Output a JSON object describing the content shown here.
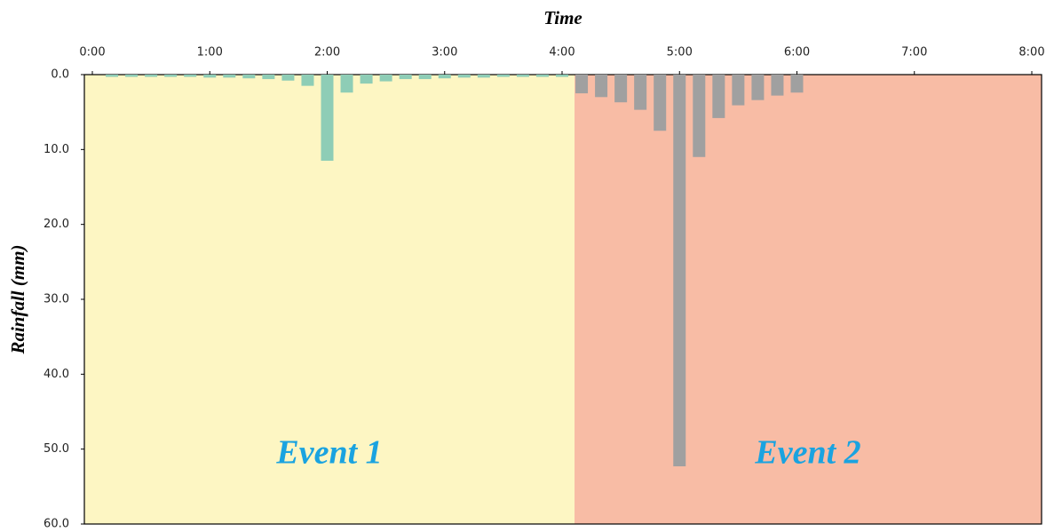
{
  "chart_data": {
    "type": "bar",
    "title": "Time",
    "y_label": "Rainfall (mm)",
    "series": [
      {
        "name": "Event 1",
        "color": "#8ecdb6",
        "region_color": "#fdf6c3",
        "x": [
          10,
          20,
          30,
          40,
          50,
          60,
          70,
          80,
          90,
          100,
          110,
          120,
          130,
          140,
          150,
          160,
          170,
          180,
          190,
          200,
          210,
          220,
          230,
          240
        ],
        "values": [
          0.3,
          0.3,
          0.3,
          0.3,
          0.3,
          0.4,
          0.4,
          0.5,
          0.6,
          0.8,
          1.5,
          11.5,
          2.4,
          1.2,
          0.9,
          0.6,
          0.6,
          0.5,
          0.4,
          0.4,
          0.3,
          0.3,
          0.3,
          0.3
        ]
      },
      {
        "name": "Event 2",
        "color": "#a0a0a0",
        "region_color": "#f8bca5",
        "x": [
          250,
          260,
          270,
          280,
          290,
          300,
          310,
          320,
          330,
          340,
          350,
          360
        ],
        "values": [
          2.5,
          3.0,
          3.7,
          4.7,
          7.5,
          52.3,
          11.0,
          5.8,
          4.1,
          3.4,
          2.8,
          2.4
        ]
      }
    ],
    "xlim": [
      0,
      480
    ],
    "xticks": [
      {
        "value": 0,
        "label": "0:00"
      },
      {
        "value": 60,
        "label": "1:00"
      },
      {
        "value": 120,
        "label": "2:00"
      },
      {
        "value": 180,
        "label": "3:00"
      },
      {
        "value": 240,
        "label": "4:00"
      },
      {
        "value": 300,
        "label": "5:00"
      },
      {
        "value": 360,
        "label": "6:00"
      },
      {
        "value": 420,
        "label": "7:00"
      },
      {
        "value": 480,
        "label": "8:00"
      }
    ],
    "ylim": [
      0,
      60
    ],
    "y_inverted": true,
    "yticks": [
      {
        "value": 0,
        "label": "0.0"
      },
      {
        "value": 10,
        "label": "10.0"
      },
      {
        "value": 20,
        "label": "20.0"
      },
      {
        "value": 30,
        "label": "30.0"
      },
      {
        "value": 40,
        "label": "40.0"
      },
      {
        "value": 50,
        "label": "50.0"
      },
      {
        "value": 60,
        "label": "60.0"
      }
    ]
  }
}
